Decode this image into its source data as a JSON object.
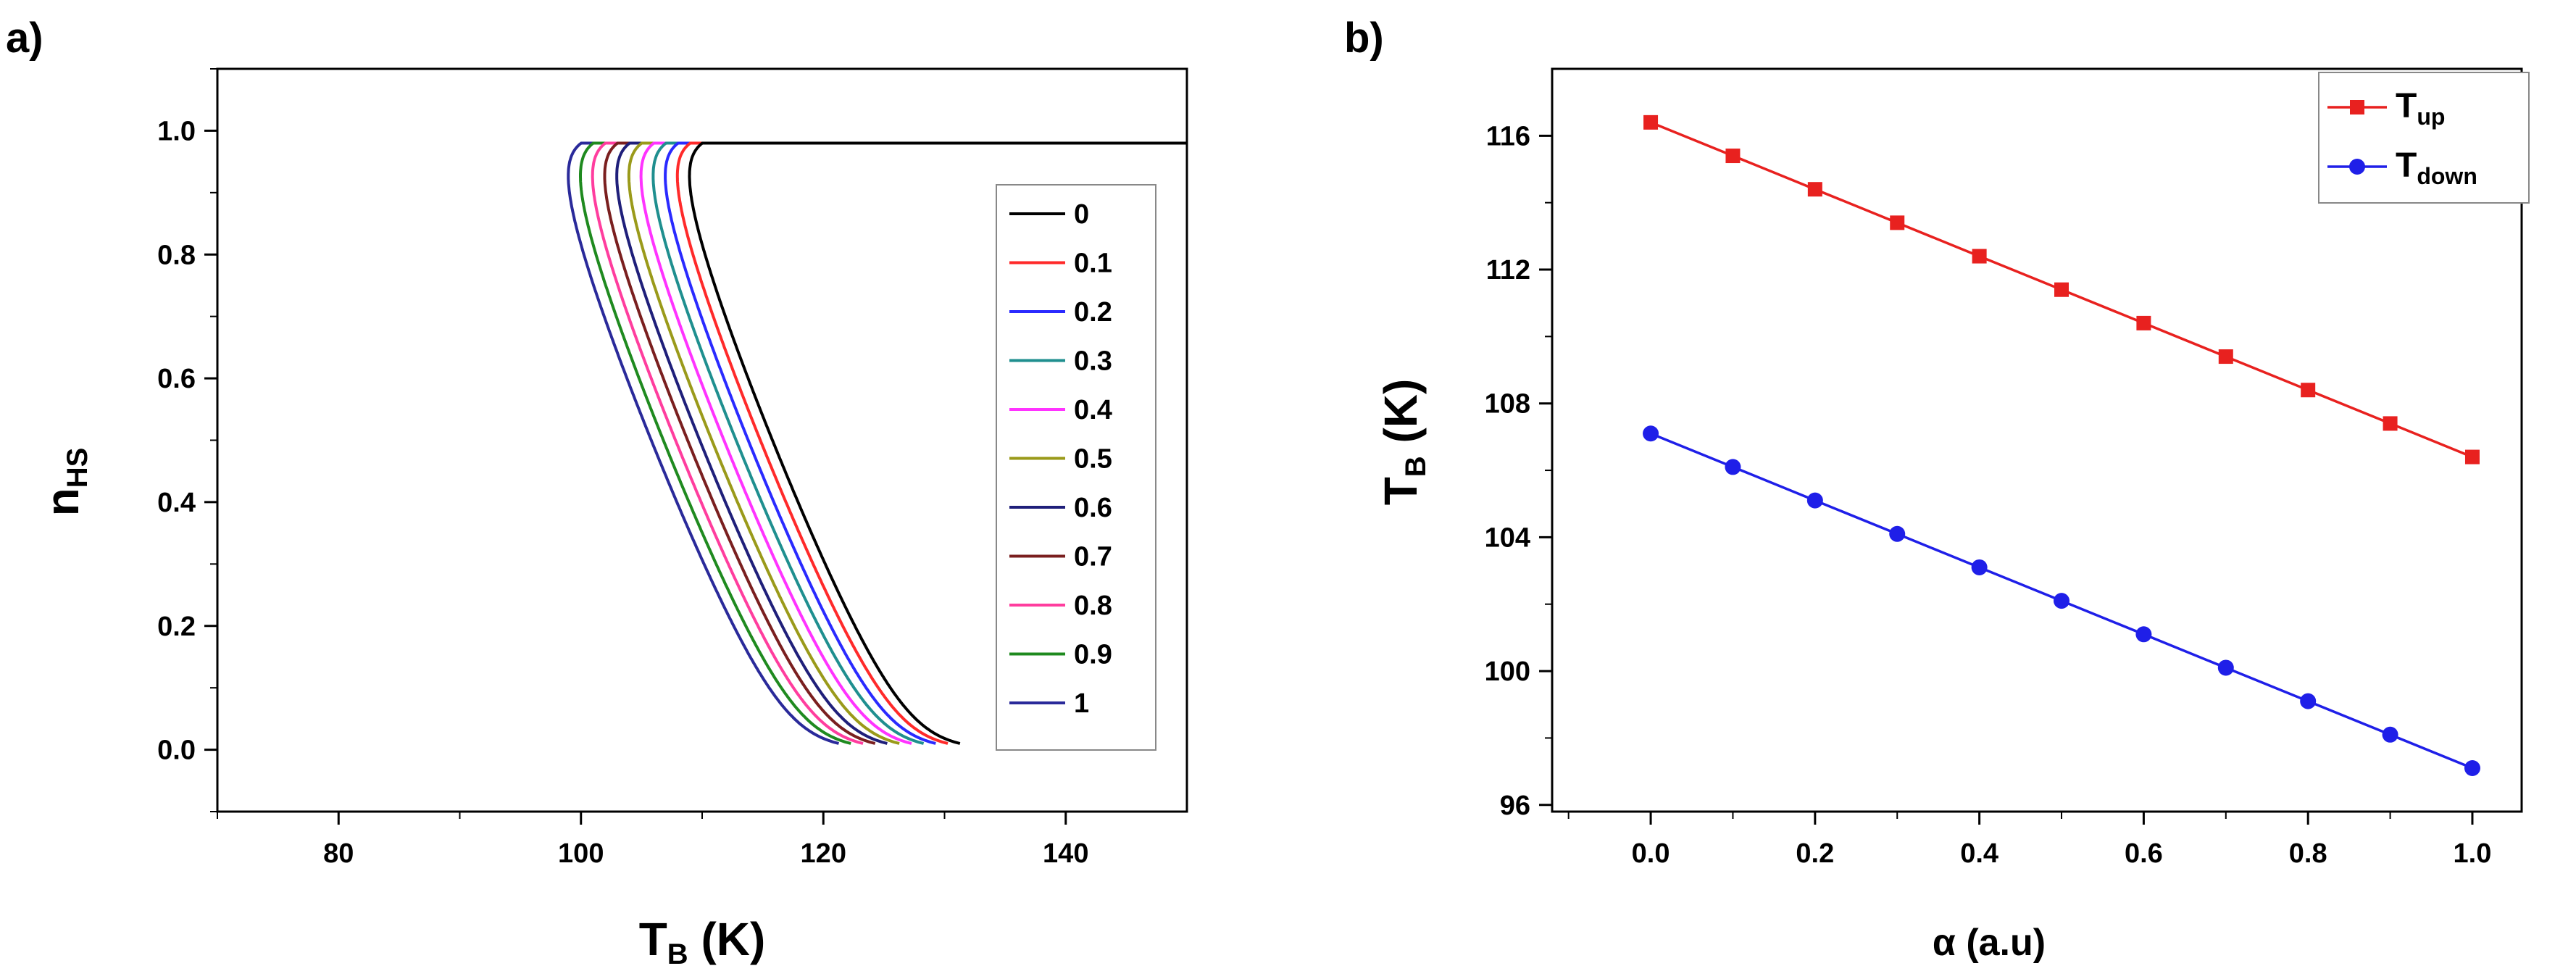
{
  "figure": {
    "panel_a_label": "a)",
    "panel_b_label": "b)"
  },
  "chart_data": [
    {
      "type": "line",
      "panel": "a)",
      "title": "",
      "xlabel_main": "T",
      "xlabel_sub": "B",
      "xlabel_unit": " (K)",
      "ylabel_main": "n",
      "ylabel_sub": "HS",
      "xlim": [
        70,
        150
      ],
      "ylim": [
        -0.1,
        1.1
      ],
      "xticks": [
        80,
        100,
        120,
        140
      ],
      "xtick_labels": [
        "80",
        "100",
        "120",
        "140"
      ],
      "yticks": [
        0.0,
        0.2,
        0.4,
        0.6,
        0.8,
        1.0
      ],
      "ytick_labels": [
        "0.0",
        "0.2",
        "0.4",
        "0.6",
        "0.8",
        "1.0"
      ],
      "legend_position": "right",
      "curve_model": "T = T0 - s*alpha + A*atanh(2n-1)/(2n-1) - B*(2n-1), n from 0.01 to 0.98",
      "series": [
        {
          "name": "0",
          "alpha": 0.0,
          "color": "#000000",
          "T_up": 116.4,
          "T_down": 107.1
        },
        {
          "name": "0.1",
          "alpha": 0.1,
          "color": "#ff2a2a",
          "T_up": 115.4,
          "T_down": 106.1
        },
        {
          "name": "0.2",
          "alpha": 0.2,
          "color": "#2a2aff",
          "T_up": 114.4,
          "T_down": 105.1
        },
        {
          "name": "0.3",
          "alpha": 0.3,
          "color": "#1f8f8f",
          "T_up": 113.4,
          "T_down": 104.1
        },
        {
          "name": "0.4",
          "alpha": 0.4,
          "color": "#ff33ff",
          "T_up": 112.4,
          "T_down": 103.1
        },
        {
          "name": "0.5",
          "alpha": 0.5,
          "color": "#9a9a1a",
          "T_up": 111.4,
          "T_down": 102.1
        },
        {
          "name": "0.6",
          "alpha": 0.6,
          "color": "#1f1f7a",
          "T_up": 110.4,
          "T_down": 101.1
        },
        {
          "name": "0.7",
          "alpha": 0.7,
          "color": "#7a1f1f",
          "T_up": 109.4,
          "T_down": 100.1
        },
        {
          "name": "0.8",
          "alpha": 0.8,
          "color": "#ff3d9e",
          "T_up": 108.4,
          "T_down": 99.1
        },
        {
          "name": "0.9",
          "alpha": 0.9,
          "color": "#1f8a1f",
          "T_up": 107.4,
          "T_down": 98.1
        },
        {
          "name": "1",
          "alpha": 1.0,
          "color": "#2a2a9a",
          "T_up": 106.4,
          "T_down": 97.1
        }
      ]
    },
    {
      "type": "line",
      "panel": "b)",
      "title": "",
      "xlabel": "α (a.u)",
      "ylabel_main": "T",
      "ylabel_sub": "B",
      "ylabel_unit": " (K)",
      "xlim": [
        -0.12,
        1.06
      ],
      "ylim": [
        95.8,
        118.0
      ],
      "xticks": [
        0.0,
        0.2,
        0.4,
        0.6,
        0.8,
        1.0
      ],
      "xtick_labels": [
        "0.0",
        "0.2",
        "0.4",
        "0.6",
        "0.8",
        "1.0"
      ],
      "yticks": [
        96,
        100,
        104,
        108,
        112,
        116
      ],
      "ytick_labels": [
        "96",
        "100",
        "104",
        "108",
        "112",
        "116"
      ],
      "legend_position": "top-right",
      "x": [
        0.0,
        0.1,
        0.2,
        0.3,
        0.4,
        0.5,
        0.6,
        0.7,
        0.8,
        0.9,
        1.0
      ],
      "series": [
        {
          "name_main": "T",
          "name_sub": "up",
          "color": "#e8211f",
          "marker": "square",
          "values": [
            116.4,
            115.4,
            114.4,
            113.4,
            112.4,
            111.4,
            110.4,
            109.4,
            108.4,
            107.4,
            106.4
          ]
        },
        {
          "name_main": "T",
          "name_sub": "down",
          "color": "#1f1fe8",
          "marker": "circle",
          "values": [
            107.1,
            106.1,
            105.1,
            104.1,
            103.1,
            102.1,
            101.1,
            100.1,
            99.1,
            98.1,
            97.1
          ]
        }
      ]
    }
  ]
}
